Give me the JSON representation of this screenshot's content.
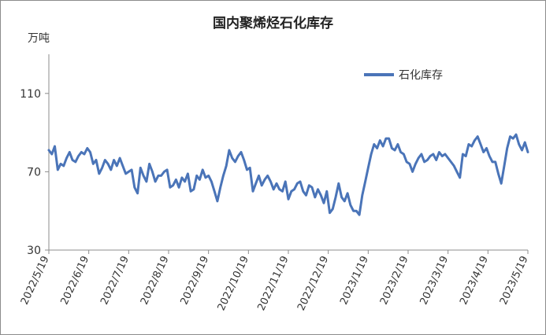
{
  "chart_data": {
    "type": "line",
    "title": "国内聚烯烃石化库存",
    "ylabel": "万吨",
    "ylim": [
      30,
      130
    ],
    "yticks": [
      30,
      70,
      110
    ],
    "grid": false,
    "legend_position": "top-right",
    "x_tick_labels": [
      "2022/5/19",
      "2022/6/19",
      "2022/7/19",
      "2022/8/19",
      "2022/9/19",
      "2022/10/19",
      "2022/11/19",
      "2022/12/19",
      "2023/1/19",
      "2023/2/19",
      "2023/3/19",
      "2023/4/19",
      "2023/5/19"
    ],
    "series": [
      {
        "name": "石化库存",
        "color": "#4a74b8",
        "values": [
          81,
          79,
          83,
          71,
          74,
          73,
          77,
          80,
          76,
          75,
          78,
          80,
          79,
          82,
          80,
          74,
          76,
          69,
          72,
          76,
          74,
          71,
          76,
          73,
          77,
          73,
          69,
          70,
          71,
          62,
          59,
          72,
          68,
          65,
          74,
          70,
          65,
          68,
          68,
          70,
          71,
          62,
          63,
          66,
          62,
          67,
          65,
          69,
          60,
          61,
          68,
          66,
          71,
          67,
          68,
          65,
          60,
          55,
          62,
          68,
          73,
          81,
          77,
          75,
          78,
          80,
          76,
          71,
          72,
          60,
          64,
          68,
          63,
          66,
          68,
          65,
          61,
          64,
          61,
          60,
          65,
          56,
          60,
          61,
          64,
          65,
          60,
          58,
          63,
          62,
          57,
          61,
          58,
          54,
          60,
          49,
          51,
          57,
          64,
          57,
          55,
          59,
          53,
          50,
          50,
          48,
          58,
          65,
          72,
          79,
          84,
          82,
          86,
          83,
          87,
          87,
          82,
          81,
          84,
          80,
          79,
          75,
          74,
          70,
          74,
          77,
          79,
          75,
          76,
          78,
          79,
          76,
          80,
          78,
          79,
          77,
          75,
          73,
          70,
          67,
          79,
          78,
          84,
          83,
          86,
          88,
          84,
          80,
          82,
          78,
          75,
          75,
          69,
          64,
          73,
          82,
          88,
          87,
          89,
          84,
          81,
          85,
          80
        ]
      }
    ]
  }
}
